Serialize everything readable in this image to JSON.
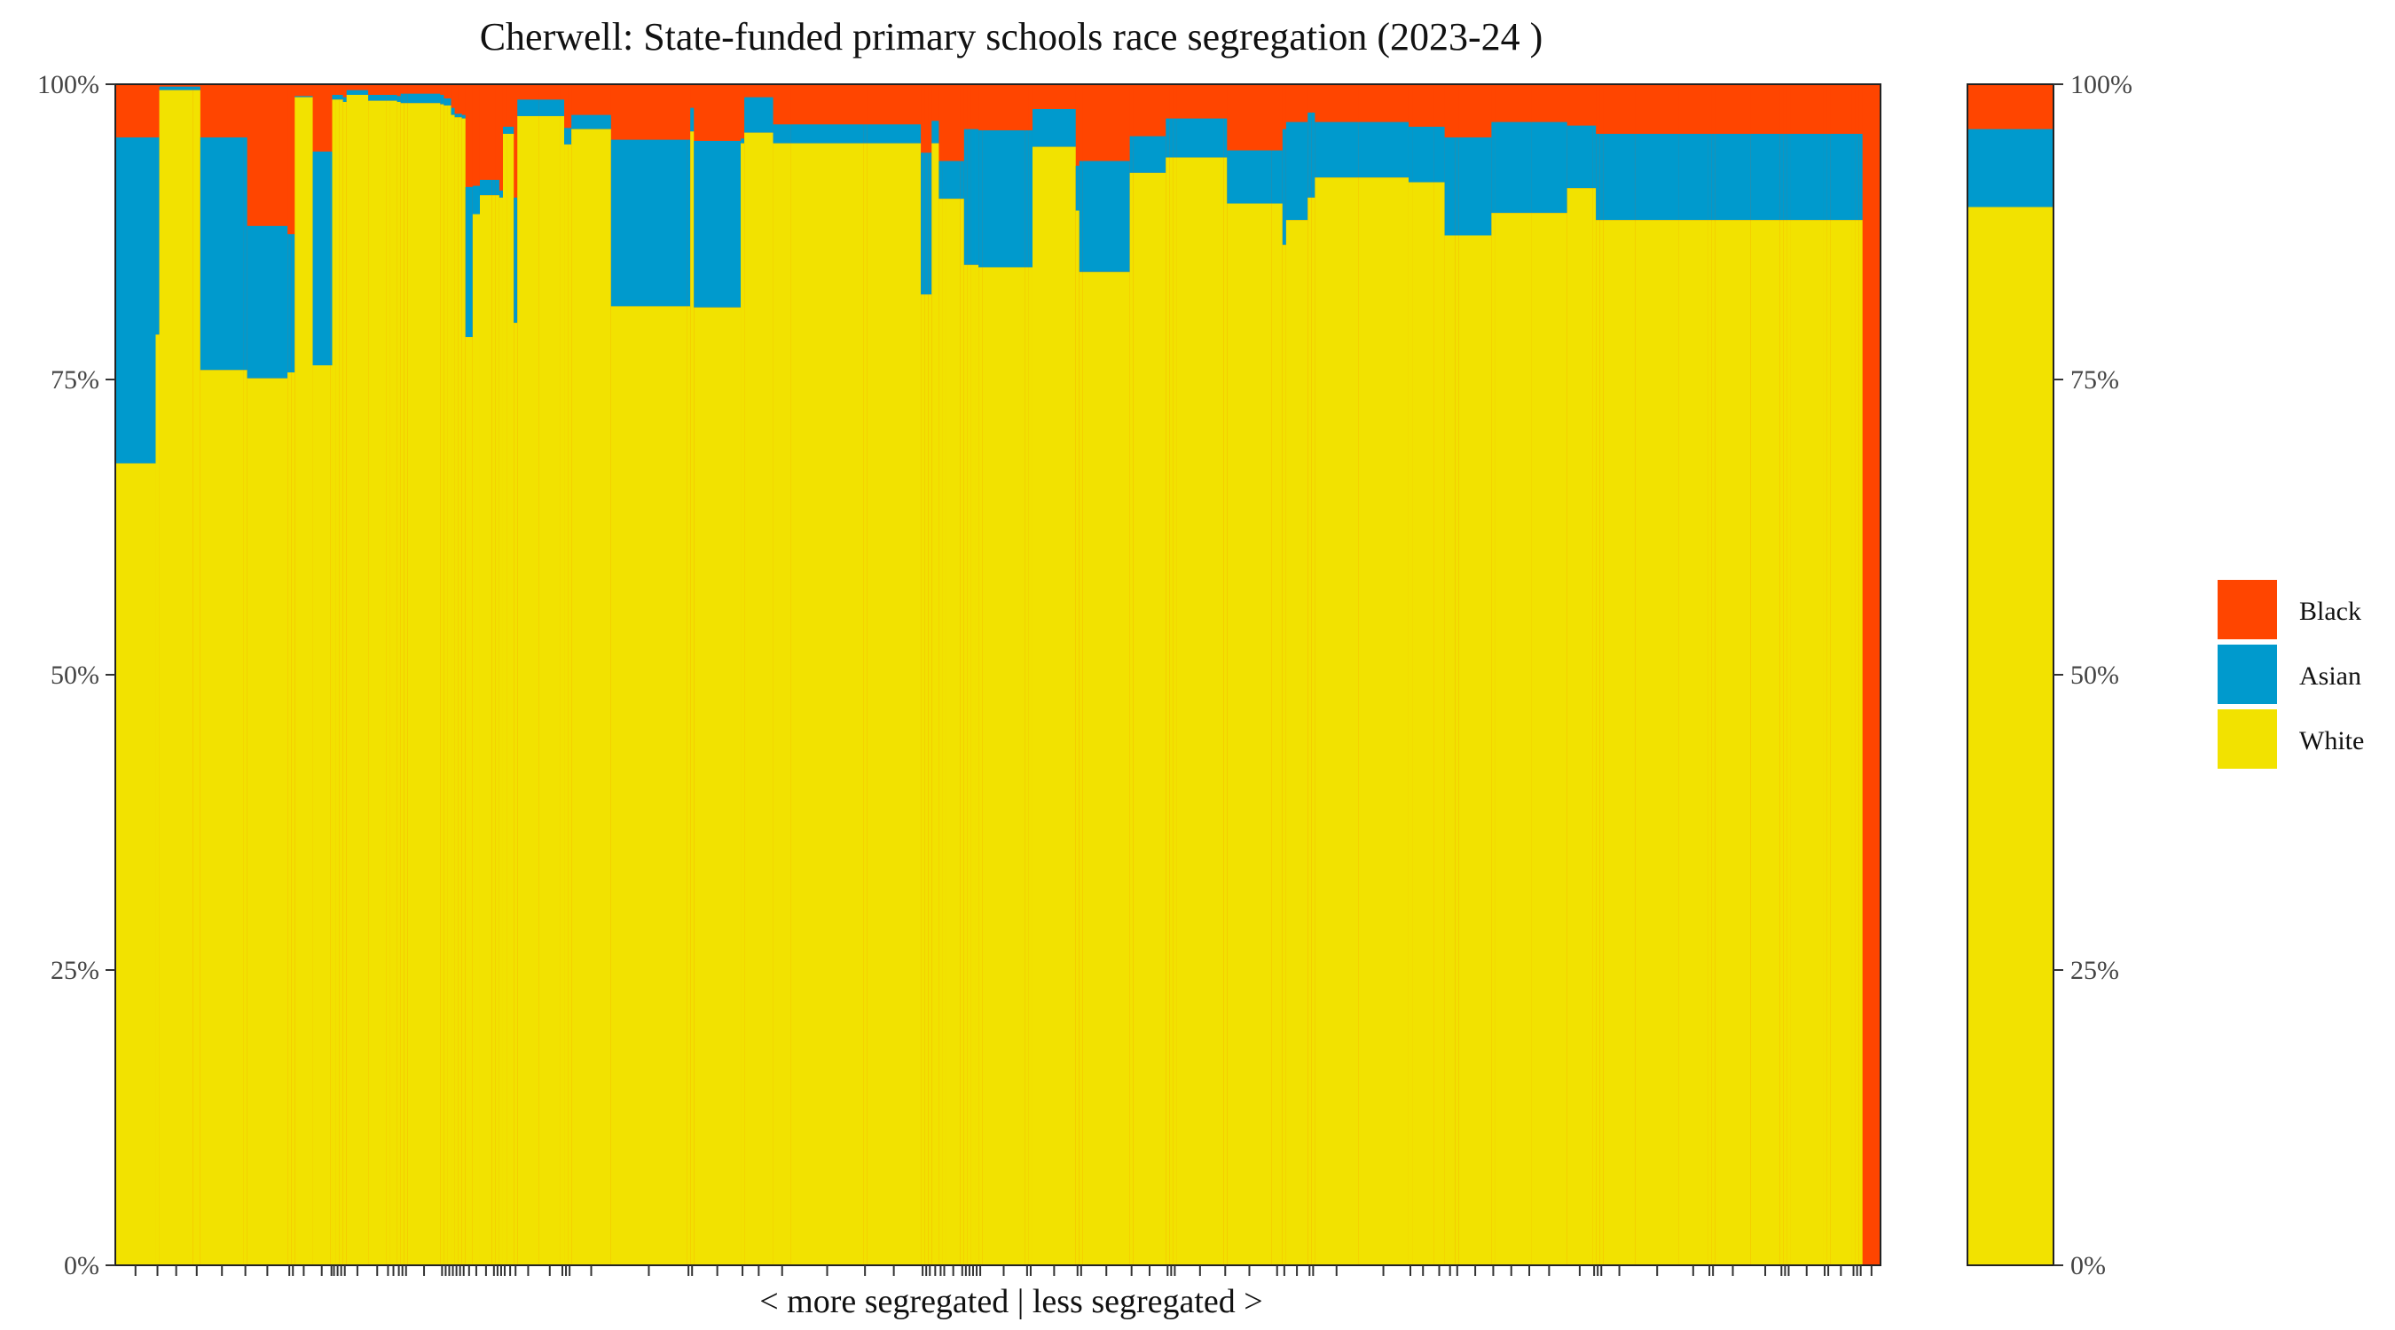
{
  "chart_data": {
    "type": "bar",
    "title": "Cherwell: State-funded primary schools race segregation (2023-24 )",
    "xlabel": "< more segregated | less segregated >",
    "ylabel": "",
    "ylim": [
      0,
      100
    ],
    "y_ticks": [
      "0%",
      "25%",
      "50%",
      "75%",
      "100%"
    ],
    "legend": {
      "position": "right",
      "entries": [
        {
          "name": "Black",
          "color": "#FF4500"
        },
        {
          "name": "Asian",
          "color": "#009ACD"
        },
        {
          "name": "White",
          "color": "#F2E200"
        }
      ]
    },
    "grid": false,
    "note": "Variable-width stacked bars (width = relative school size); separate bar on right shows the district overall",
    "schools": {
      "relative_width": [
        56,
        5,
        47,
        10,
        60,
        5,
        56,
        5,
        5,
        25,
        25,
        2,
        5,
        5,
        5,
        5,
        30,
        25,
        5,
        10,
        5,
        5,
        5,
        45,
        5,
        5,
        5,
        5,
        5,
        5,
        5,
        10,
        10,
        17,
        5,
        5,
        5,
        5,
        10,
        5,
        30,
        30,
        5,
        5,
        5,
        55,
        105,
        5,
        5,
        65,
        5,
        40,
        25,
        100,
        5,
        75,
        5,
        5,
        5,
        10,
        5,
        5,
        20,
        5,
        5,
        5,
        5,
        5,
        5,
        60,
        5,
        5,
        60,
        5,
        5,
        65,
        5,
        45,
        5,
        5,
        5,
        65,
        5,
        62,
        15,
        5,
        30,
        5,
        5,
        60,
        70,
        5,
        30,
        15,
        15,
        5,
        45,
        5,
        45,
        5,
        50,
        35,
        5,
        5,
        5,
        45,
        60,
        40,
        5,
        5,
        50,
        40,
        5,
        5,
        5,
        45,
        5,
        5,
        30,
        5,
        5,
        5,
        25
      ],
      "white": [
        67.9,
        78.8,
        99.5,
        99.5,
        75.8,
        75.8,
        75.1,
        75.6,
        75.6,
        98.9,
        76.2,
        76.2,
        98.7,
        98.7,
        98.7,
        98.5,
        99.1,
        98.6,
        98.6,
        98.6,
        98.5,
        98.4,
        98.4,
        98.4,
        98.3,
        98.2,
        98.2,
        97.4,
        97.2,
        97.2,
        97.1,
        78.6,
        89.0,
        90.6,
        90.6,
        90.6,
        90.4,
        95.8,
        95.8,
        79.8,
        97.3,
        97.3,
        97.3,
        94.9,
        94.9,
        96.2,
        81.2,
        81.2,
        96.0,
        81.1,
        95.0,
        95.9,
        95.0,
        95.0,
        95.0,
        95.0,
        82.2,
        82.2,
        82.2,
        95.0,
        90.3,
        90.3,
        90.3,
        90.3,
        84.7,
        84.7,
        84.7,
        84.7,
        84.5,
        84.5,
        84.5,
        84.5,
        94.7,
        89.3,
        84.1,
        84.1,
        92.5,
        92.5,
        93.8,
        93.8,
        93.8,
        93.8,
        93.8,
        89.9,
        89.9,
        86.4,
        88.5,
        90.4,
        90.4,
        92.1,
        92.1,
        91.7,
        91.7,
        91.7,
        87.2,
        87.2,
        87.2,
        89.1,
        89.1,
        89.1,
        89.1,
        91.2,
        91.2,
        88.5,
        88.5,
        88.5,
        88.5,
        88.5,
        88.5,
        88.5,
        88.5,
        88.5,
        88.5,
        88.5,
        88.5,
        88.5,
        88.5,
        88.5,
        88.5,
        88.5,
        88.5,
        88.5
      ],
      "asian": [
        27.6,
        16.7,
        0.3,
        0.3,
        19.7,
        19.7,
        12.9,
        11.7,
        11.7,
        0.1,
        18.1,
        18.1,
        0.4,
        0.4,
        0.4,
        0.4,
        0.4,
        0.5,
        0.5,
        0.5,
        0.5,
        0.8,
        0.8,
        0.8,
        0.8,
        0.6,
        0.6,
        0.6,
        0.3,
        0.3,
        0.3,
        12.7,
        2.4,
        1.3,
        1.3,
        1.3,
        0.6,
        0.6,
        0.6,
        10.6,
        1.4,
        1.4,
        1.4,
        1.4,
        1.4,
        1.2,
        14.1,
        14.1,
        2.0,
        14.1,
        0.4,
        3.0,
        1.6,
        1.6,
        1.6,
        1.6,
        12.0,
        12.0,
        12.0,
        1.9,
        3.2,
        3.2,
        3.2,
        3.2,
        11.5,
        11.5,
        11.5,
        11.5,
        11.6,
        11.6,
        11.6,
        11.6,
        3.2,
        3.8,
        9.4,
        9.4,
        3.1,
        3.1,
        3.3,
        3.3,
        3.3,
        3.3,
        3.3,
        4.5,
        4.5,
        9.8,
        8.3,
        7.2,
        7.2,
        4.7,
        4.7,
        4.7,
        4.7,
        4.7,
        8.3,
        8.3,
        8.3,
        7.7,
        7.7,
        7.7,
        7.7,
        5.3,
        5.3,
        7.3,
        7.3,
        7.3,
        7.3,
        7.3,
        7.3,
        7.3,
        7.3,
        7.3,
        7.3,
        7.3,
        7.3,
        7.3,
        7.3,
        7.3,
        7.3,
        7.3,
        7.3,
        7.3
      ],
      "black": [
        4.5,
        4.5,
        0.2,
        0.2,
        4.5,
        4.5,
        12.0,
        12.7,
        12.7,
        1.0,
        5.7,
        5.7,
        0.9,
        0.9,
        0.9,
        1.1,
        0.5,
        0.9,
        0.9,
        0.9,
        1.0,
        0.8,
        0.8,
        0.8,
        0.9,
        1.2,
        1.2,
        2.0,
        2.5,
        2.5,
        2.6,
        8.7,
        8.6,
        8.1,
        8.1,
        8.1,
        9.0,
        3.6,
        3.6,
        9.6,
        1.3,
        1.3,
        1.3,
        3.7,
        3.7,
        2.6,
        4.7,
        4.7,
        2.0,
        4.8,
        4.6,
        1.1,
        3.4,
        3.4,
        3.4,
        3.4,
        5.8,
        5.8,
        5.8,
        3.1,
        6.5,
        6.5,
        6.5,
        6.5,
        3.8,
        3.8,
        3.8,
        3.8,
        3.9,
        3.9,
        3.9,
        3.9,
        2.1,
        6.9,
        6.5,
        6.5,
        4.4,
        4.4,
        2.9,
        2.9,
        2.9,
        2.9,
        2.9,
        5.6,
        5.6,
        3.8,
        3.2,
        2.4,
        2.4,
        3.2,
        3.2,
        3.6,
        3.6,
        3.6,
        4.5,
        4.5,
        4.5,
        3.2,
        3.2,
        3.2,
        3.2,
        3.5,
        3.5,
        4.2,
        4.2,
        4.2,
        4.2,
        4.2,
        4.2,
        4.2,
        4.2,
        4.2,
        4.2,
        4.2,
        4.2,
        4.2,
        4.2,
        4.2,
        4.2,
        4.2,
        4.2,
        4.2
      ]
    },
    "overall": {
      "white": 89.6,
      "asian": 6.6,
      "black": 3.8
    }
  }
}
